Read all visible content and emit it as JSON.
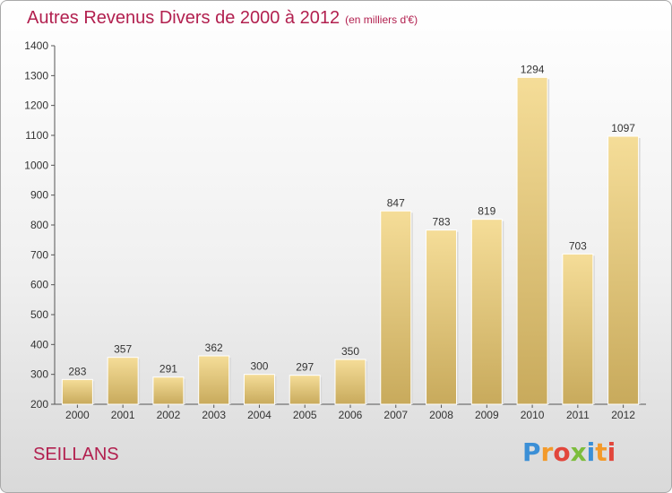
{
  "title": "Autres Revenus Divers de 2000 à 2012",
  "unit_note": "(en milliers d'€)",
  "location": "SEILLANS",
  "logo": {
    "letters": [
      {
        "ch": "P",
        "color": "#3b8fd6"
      },
      {
        "ch": "r",
        "color": "#f39a2a"
      },
      {
        "ch": "o",
        "color": "#e2463b"
      },
      {
        "ch": "x",
        "color": "#7cbd3c"
      },
      {
        "ch": "i",
        "color": "#3b8fd6"
      },
      {
        "ch": "t",
        "color": "#f39a2a"
      },
      {
        "ch": "i",
        "color": "#e2463b"
      }
    ]
  },
  "colors": {
    "bar_top": "#f5dd98",
    "bar_bottom": "#c8aa5c",
    "accent": "#b2204f"
  },
  "chart_data": {
    "type": "bar",
    "categories": [
      "2000",
      "2001",
      "2002",
      "2003",
      "2004",
      "2005",
      "2006",
      "2007",
      "2008",
      "2009",
      "2010",
      "2011",
      "2012"
    ],
    "values": [
      283,
      357,
      291,
      362,
      300,
      297,
      350,
      847,
      783,
      819,
      1294,
      703,
      1097
    ],
    "ylim": [
      200,
      1400
    ],
    "yticks": [
      200,
      300,
      400,
      500,
      600,
      700,
      800,
      900,
      1000,
      1100,
      1200,
      1300,
      1400
    ],
    "grid": false,
    "xlabel": "",
    "ylabel": ""
  }
}
